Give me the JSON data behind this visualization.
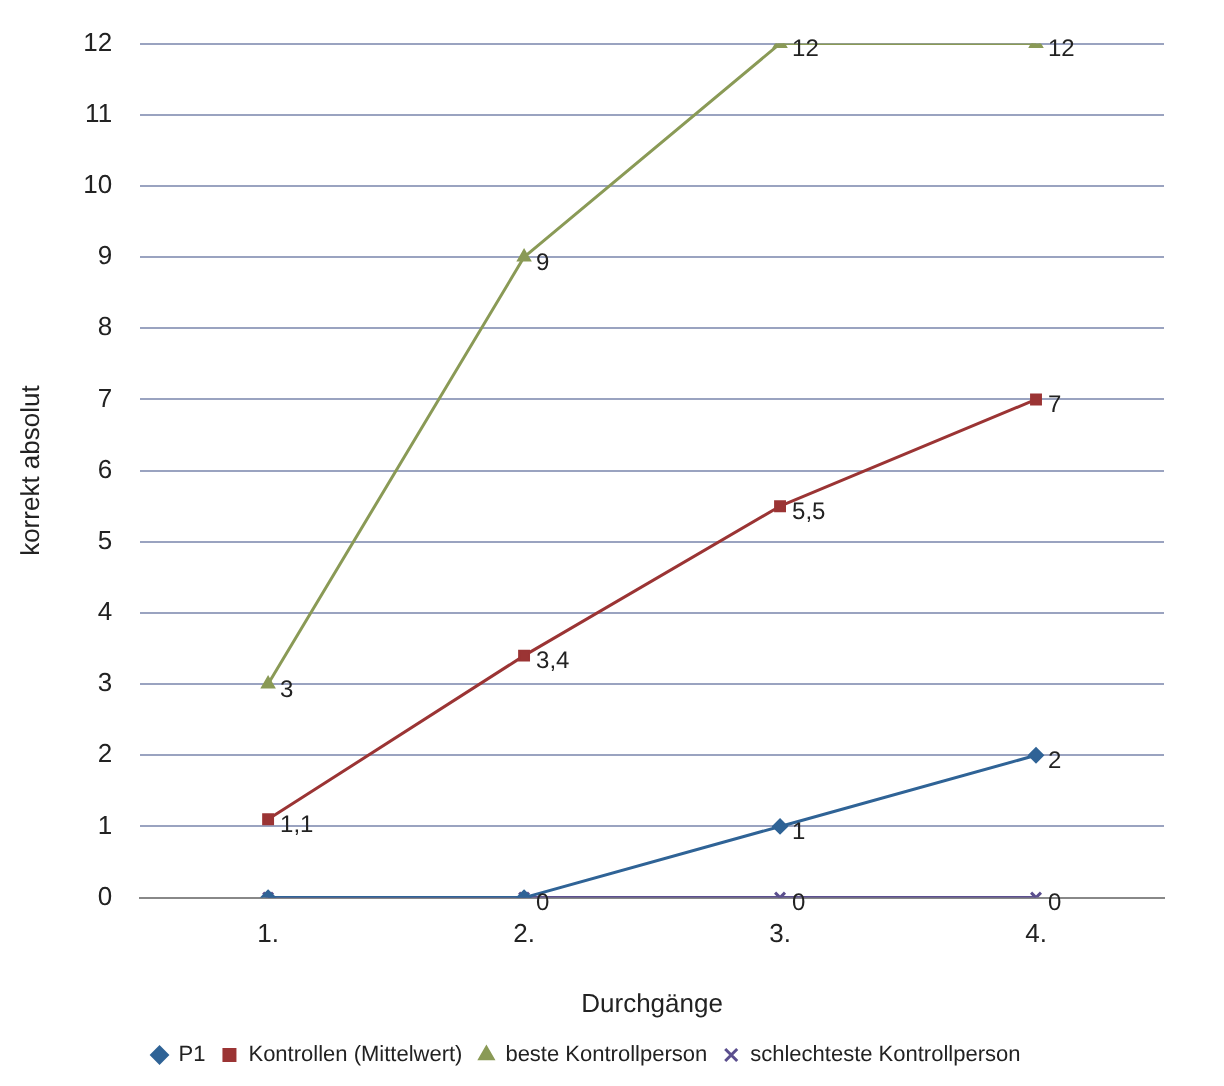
{
  "chart_data": {
    "type": "line",
    "xlabel": "Durchgänge",
    "ylabel": "korrekt absolut",
    "categories": [
      "1.",
      "2.",
      "3.",
      "4."
    ],
    "series": [
      {
        "name": "P1",
        "color": "#2f6396",
        "marker": "diamond",
        "values": [
          0,
          0,
          1,
          2
        ],
        "value_labels": [
          null,
          "0",
          "1",
          "2"
        ]
      },
      {
        "name": "Kontrollen (Mittelwert)",
        "color": "#9b3434",
        "marker": "square",
        "values": [
          1.1,
          3.4,
          5.5,
          7
        ],
        "value_labels": [
          "1,1",
          "3,4",
          "5,5",
          "7"
        ]
      },
      {
        "name": "beste Kontrollperson",
        "color": "#8a9a56",
        "marker": "triangle",
        "values": [
          3,
          9,
          12,
          12
        ],
        "value_labels": [
          "3",
          "9",
          "12",
          "12"
        ]
      },
      {
        "name": "schlechteste Kontrollperson",
        "color": "#5b4f8e",
        "marker": "cross",
        "values": [
          0,
          0,
          0,
          0
        ],
        "value_labels": [
          null,
          null,
          "0",
          "0"
        ]
      }
    ],
    "ylim": [
      0,
      12
    ],
    "yticks": [
      0,
      1,
      2,
      3,
      4,
      5,
      6,
      7,
      8,
      9,
      10,
      11,
      12
    ],
    "grid": "y",
    "legend": "bottom",
    "line_style": "solid"
  }
}
